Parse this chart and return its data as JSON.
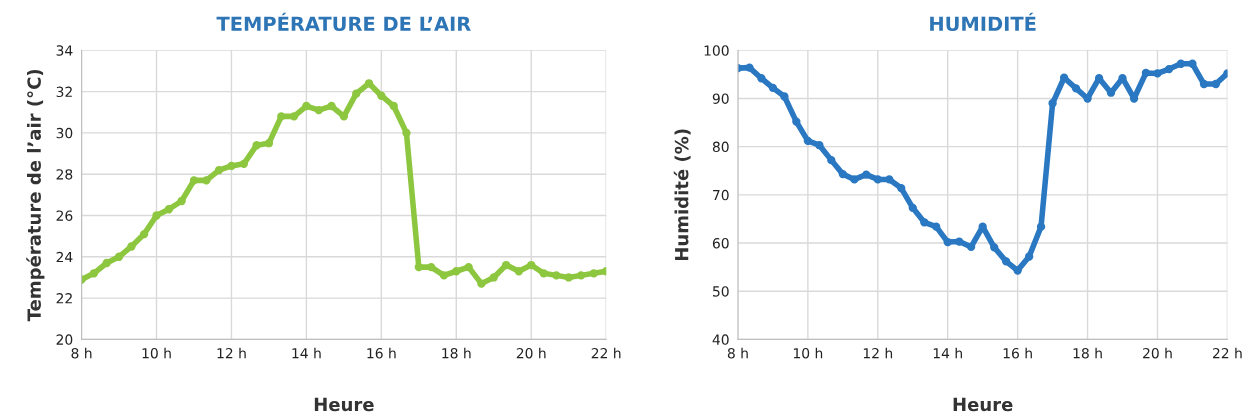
{
  "chart_data": [
    {
      "type": "line",
      "title": "TEMPÉRATURE DE L’AIR",
      "xlabel": "Heure",
      "ylabel": "Température de l’air (°C)",
      "x": [
        8,
        8.33,
        8.67,
        9,
        9.33,
        9.67,
        10,
        10.33,
        10.67,
        11,
        11.33,
        11.67,
        12,
        12.33,
        12.67,
        13,
        13.33,
        13.67,
        14,
        14.33,
        14.67,
        15,
        15.33,
        15.67,
        16,
        16.33,
        16.67,
        17,
        17.33,
        17.67,
        18,
        18.33,
        18.67,
        19,
        19.33,
        19.67,
        20,
        20.33,
        20.67,
        21,
        21.33,
        21.67,
        22
      ],
      "series": [
        {
          "color": "#8dc63f",
          "values": [
            22.9,
            23.2,
            23.7,
            24.0,
            24.5,
            25.1,
            26.0,
            26.3,
            26.7,
            27.7,
            27.7,
            28.2,
            28.4,
            28.5,
            29.4,
            29.5,
            30.8,
            30.8,
            31.3,
            31.1,
            31.3,
            30.8,
            31.9,
            32.4,
            31.8,
            31.3,
            30.0,
            23.5,
            23.5,
            23.1,
            23.3,
            23.5,
            22.7,
            23.0,
            23.6,
            23.3,
            23.6,
            23.2,
            23.1,
            23.0,
            23.1,
            23.2,
            23.3
          ]
        }
      ],
      "xlim": [
        8,
        22
      ],
      "xticks": [
        {
          "value": 8,
          "label": "8 h"
        },
        {
          "value": 10,
          "label": "10 h"
        },
        {
          "value": 12,
          "label": "12 h"
        },
        {
          "value": 14,
          "label": "14 h"
        },
        {
          "value": 16,
          "label": "16 h"
        },
        {
          "value": 18,
          "label": "18 h"
        },
        {
          "value": 20,
          "label": "20 h"
        },
        {
          "value": 22,
          "label": "22 h"
        }
      ],
      "ylim": [
        20,
        34
      ],
      "yticks": [
        20,
        22,
        24,
        26,
        28,
        30,
        32,
        34
      ],
      "grid": true,
      "marker": "circle",
      "line_style": "solid"
    },
    {
      "type": "line",
      "title": "HUMIDITÉ",
      "xlabel": "Heure",
      "ylabel": "Humidité (%)",
      "x": [
        8,
        8.33,
        8.67,
        9,
        9.33,
        9.67,
        10,
        10.33,
        10.67,
        11,
        11.33,
        11.67,
        12,
        12.33,
        12.67,
        13,
        13.33,
        13.67,
        14,
        14.33,
        14.67,
        15,
        15.33,
        15.67,
        16,
        16.33,
        16.67,
        17,
        17.33,
        17.67,
        18,
        18.33,
        18.67,
        19,
        19.33,
        19.67,
        20,
        20.33,
        20.67,
        21,
        21.33,
        21.67,
        22
      ],
      "series": [
        {
          "color": "#2a78c2",
          "values": [
            96.3,
            96.4,
            94.2,
            92.2,
            90.4,
            85.2,
            81.2,
            80.3,
            77.2,
            74.3,
            73.2,
            74.2,
            73.2,
            73.2,
            71.4,
            67.3,
            64.3,
            63.4,
            60.2,
            60.3,
            59.2,
            63.4,
            59.1,
            56.2,
            54.3,
            57.2,
            63.4,
            89.0,
            94.3,
            92.1,
            90.0,
            94.2,
            91.2,
            94.2,
            90.0,
            95.3,
            95.2,
            96.1,
            97.2,
            97.2,
            93.0,
            93.0,
            95.2
          ]
        }
      ],
      "xlim": [
        8,
        22
      ],
      "xticks": [
        {
          "value": 8,
          "label": "8 h"
        },
        {
          "value": 10,
          "label": "10 h"
        },
        {
          "value": 12,
          "label": "12 h"
        },
        {
          "value": 14,
          "label": "14 h"
        },
        {
          "value": 16,
          "label": "16 h"
        },
        {
          "value": 18,
          "label": "18 h"
        },
        {
          "value": 20,
          "label": "20 h"
        },
        {
          "value": 22,
          "label": "22 h"
        }
      ],
      "ylim": [
        40,
        100
      ],
      "yticks": [
        40,
        50,
        60,
        70,
        80,
        90,
        100
      ],
      "grid": true,
      "marker": "circle",
      "line_style": "solid"
    }
  ]
}
